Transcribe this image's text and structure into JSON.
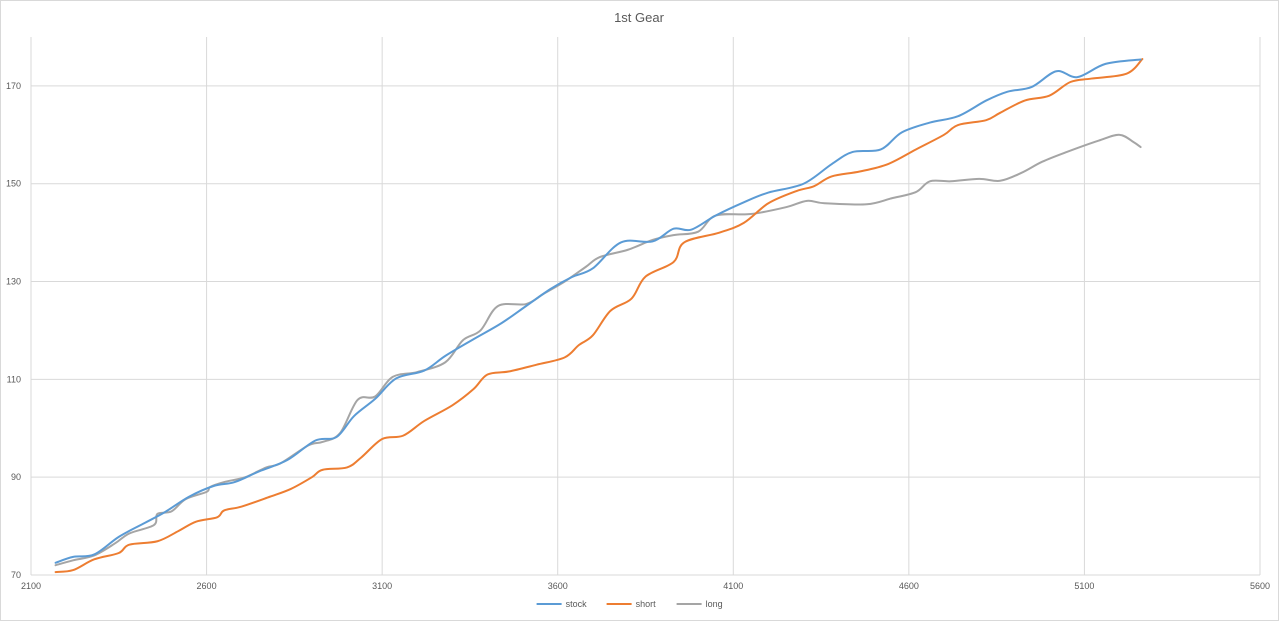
{
  "chart_data": {
    "type": "line",
    "title": "1st Gear",
    "xlabel": "",
    "ylabel": "",
    "xlim": [
      2100,
      5600
    ],
    "ylim": [
      70,
      180
    ],
    "x_ticks": [
      2100,
      2600,
      3100,
      3600,
      4100,
      4600,
      5100,
      5600
    ],
    "y_ticks": [
      70,
      90,
      110,
      130,
      150,
      170
    ],
    "grid": true,
    "legend_position": "bottom",
    "series": [
      {
        "name": "stock",
        "color": "#5B9BD5",
        "points": [
          [
            2170,
            72.5
          ],
          [
            2220,
            73.7
          ],
          [
            2280,
            74.2
          ],
          [
            2350,
            77.8
          ],
          [
            2420,
            80.5
          ],
          [
            2480,
            82.8
          ],
          [
            2550,
            86.0
          ],
          [
            2620,
            88.2
          ],
          [
            2680,
            89.0
          ],
          [
            2750,
            91.2
          ],
          [
            2830,
            93.5
          ],
          [
            2910,
            97.5
          ],
          [
            2970,
            98.2
          ],
          [
            3020,
            102.5
          ],
          [
            3080,
            106.0
          ],
          [
            3140,
            110.2
          ],
          [
            3220,
            111.8
          ],
          [
            3280,
            114.8
          ],
          [
            3360,
            118.2
          ],
          [
            3440,
            121.5
          ],
          [
            3510,
            125.0
          ],
          [
            3580,
            128.5
          ],
          [
            3640,
            130.9
          ],
          [
            3700,
            132.7
          ],
          [
            3780,
            138.0
          ],
          [
            3870,
            138.2
          ],
          [
            3930,
            140.8
          ],
          [
            3980,
            140.6
          ],
          [
            4050,
            143.5
          ],
          [
            4130,
            146.2
          ],
          [
            4200,
            148.2
          ],
          [
            4300,
            150.0
          ],
          [
            4380,
            154.0
          ],
          [
            4440,
            156.5
          ],
          [
            4520,
            157.0
          ],
          [
            4580,
            160.5
          ],
          [
            4660,
            162.5
          ],
          [
            4740,
            163.8
          ],
          [
            4820,
            167.0
          ],
          [
            4880,
            168.8
          ],
          [
            4950,
            169.8
          ],
          [
            5020,
            173.0
          ],
          [
            5080,
            171.8
          ],
          [
            5160,
            174.5
          ],
          [
            5260,
            175.4
          ]
        ]
      },
      {
        "name": "short",
        "color": "#ED7D31",
        "points": [
          [
            2170,
            70.6
          ],
          [
            2220,
            71.0
          ],
          [
            2280,
            73.2
          ],
          [
            2350,
            74.5
          ],
          [
            2380,
            76.2
          ],
          [
            2460,
            76.9
          ],
          [
            2520,
            79.0
          ],
          [
            2570,
            80.9
          ],
          [
            2630,
            81.8
          ],
          [
            2650,
            83.2
          ],
          [
            2700,
            84.0
          ],
          [
            2780,
            86.0
          ],
          [
            2840,
            87.6
          ],
          [
            2900,
            90.0
          ],
          [
            2930,
            91.5
          ],
          [
            3000,
            92.0
          ],
          [
            3040,
            94.0
          ],
          [
            3100,
            97.8
          ],
          [
            3160,
            98.5
          ],
          [
            3220,
            101.5
          ],
          [
            3300,
            104.7
          ],
          [
            3360,
            108.0
          ],
          [
            3400,
            111.0
          ],
          [
            3460,
            111.6
          ],
          [
            3540,
            113.0
          ],
          [
            3620,
            114.5
          ],
          [
            3660,
            117.0
          ],
          [
            3700,
            119.0
          ],
          [
            3750,
            124.0
          ],
          [
            3810,
            126.5
          ],
          [
            3850,
            131.0
          ],
          [
            3930,
            134.0
          ],
          [
            3960,
            138.0
          ],
          [
            4060,
            140.0
          ],
          [
            4130,
            142.0
          ],
          [
            4200,
            146.0
          ],
          [
            4280,
            148.5
          ],
          [
            4330,
            149.5
          ],
          [
            4380,
            151.5
          ],
          [
            4460,
            152.5
          ],
          [
            4540,
            154.0
          ],
          [
            4620,
            157.0
          ],
          [
            4700,
            160.0
          ],
          [
            4740,
            162.0
          ],
          [
            4820,
            163.0
          ],
          [
            4860,
            164.5
          ],
          [
            4930,
            167.0
          ],
          [
            5000,
            168.0
          ],
          [
            5060,
            170.8
          ],
          [
            5120,
            171.5
          ],
          [
            5220,
            172.5
          ],
          [
            5265,
            175.5
          ]
        ]
      },
      {
        "name": "long",
        "color": "#A5A5A5",
        "points": [
          [
            2170,
            72.0
          ],
          [
            2220,
            73.0
          ],
          [
            2280,
            74.0
          ],
          [
            2340,
            76.5
          ],
          [
            2380,
            78.5
          ],
          [
            2450,
            80.2
          ],
          [
            2460,
            82.5
          ],
          [
            2500,
            83.0
          ],
          [
            2540,
            85.5
          ],
          [
            2600,
            87.0
          ],
          [
            2610,
            88.0
          ],
          [
            2650,
            89.0
          ],
          [
            2710,
            90.0
          ],
          [
            2770,
            92.0
          ],
          [
            2810,
            92.8
          ],
          [
            2890,
            96.5
          ],
          [
            2930,
            97.2
          ],
          [
            2980,
            99.0
          ],
          [
            3030,
            105.8
          ],
          [
            3080,
            106.5
          ],
          [
            3130,
            110.5
          ],
          [
            3200,
            111.5
          ],
          [
            3280,
            113.5
          ],
          [
            3330,
            118.0
          ],
          [
            3380,
            120.0
          ],
          [
            3430,
            125.0
          ],
          [
            3510,
            125.4
          ],
          [
            3560,
            127.5
          ],
          [
            3620,
            130.0
          ],
          [
            3680,
            133.0
          ],
          [
            3720,
            135.0
          ],
          [
            3800,
            136.5
          ],
          [
            3870,
            138.5
          ],
          [
            3930,
            139.5
          ],
          [
            4000,
            140.2
          ],
          [
            4050,
            143.5
          ],
          [
            4150,
            143.8
          ],
          [
            4250,
            145.2
          ],
          [
            4310,
            146.5
          ],
          [
            4360,
            146.0
          ],
          [
            4480,
            145.8
          ],
          [
            4550,
            147.0
          ],
          [
            4620,
            148.3
          ],
          [
            4660,
            150.5
          ],
          [
            4720,
            150.5
          ],
          [
            4800,
            151.0
          ],
          [
            4860,
            150.6
          ],
          [
            4920,
            152.2
          ],
          [
            4980,
            154.5
          ],
          [
            5050,
            156.5
          ],
          [
            5140,
            158.8
          ],
          [
            5200,
            160.0
          ],
          [
            5240,
            158.5
          ],
          [
            5260,
            157.5
          ]
        ]
      }
    ]
  }
}
